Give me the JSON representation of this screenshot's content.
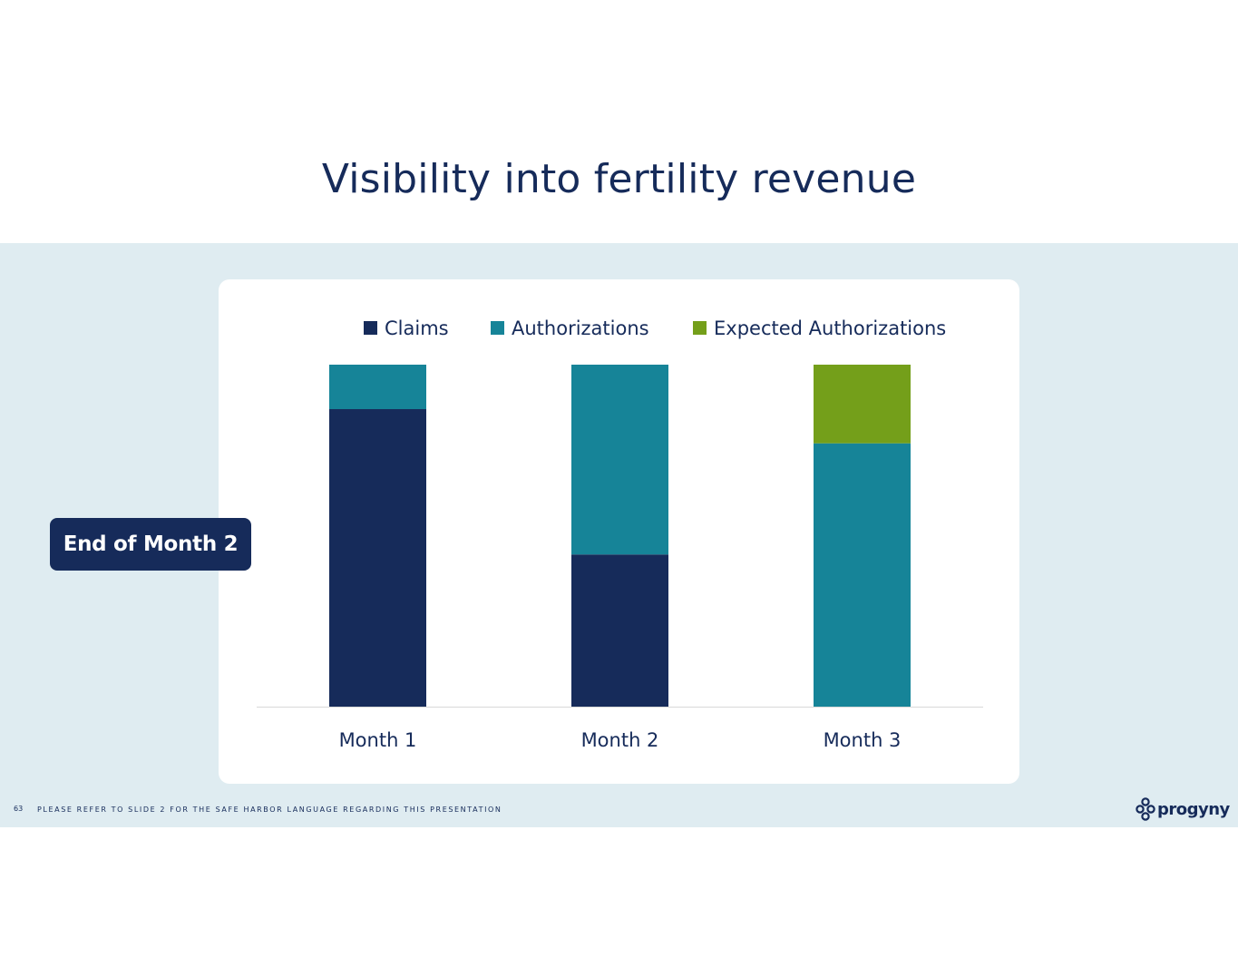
{
  "slide": {
    "title": "Visibility into fertility revenue",
    "callout": "End of Month 2",
    "page_number": "63",
    "footer": "PLEASE REFER TO SLIDE 2 FOR THE SAFE HARBOR LANGUAGE REGARDING THIS PRESENTATION",
    "logo_text": "progyny"
  },
  "colors": {
    "claims": "#162b5a",
    "authorizations": "#168498",
    "expected_authorizations": "#749f1a",
    "axis": "#d9d9d9",
    "text": "#162b5a"
  },
  "chart_data": {
    "type": "bar",
    "stacked": true,
    "categories": [
      "Month 1",
      "Month 2",
      "Month 3"
    ],
    "series": [
      {
        "name": "Claims",
        "color_key": "claims",
        "values": [
          87,
          44.5,
          0
        ]
      },
      {
        "name": "Authorizations",
        "color_key": "authorizations",
        "values": [
          13,
          55.5,
          77
        ]
      },
      {
        "name": "Expected Authorizations",
        "color_key": "expected_authorizations",
        "values": [
          0,
          0,
          23
        ]
      }
    ],
    "ylim": [
      0,
      100
    ],
    "legend_position": "top",
    "grid": false,
    "title": "",
    "xlabel": "",
    "ylabel": ""
  }
}
